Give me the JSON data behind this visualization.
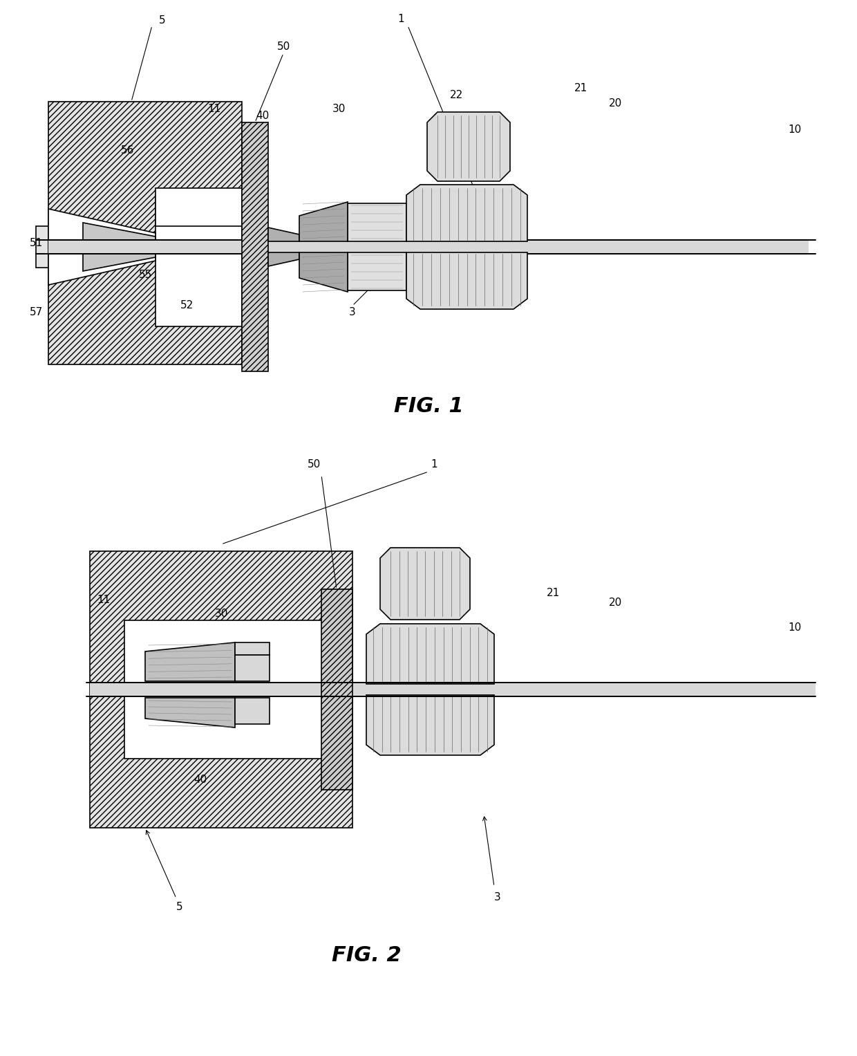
{
  "fig_width": 12.4,
  "fig_height": 15.27,
  "dpi": 100,
  "bg_color": "#ffffff",
  "lw": 1.2,
  "fig1_title": "FIG. 1",
  "fig2_title": "FIG. 2"
}
